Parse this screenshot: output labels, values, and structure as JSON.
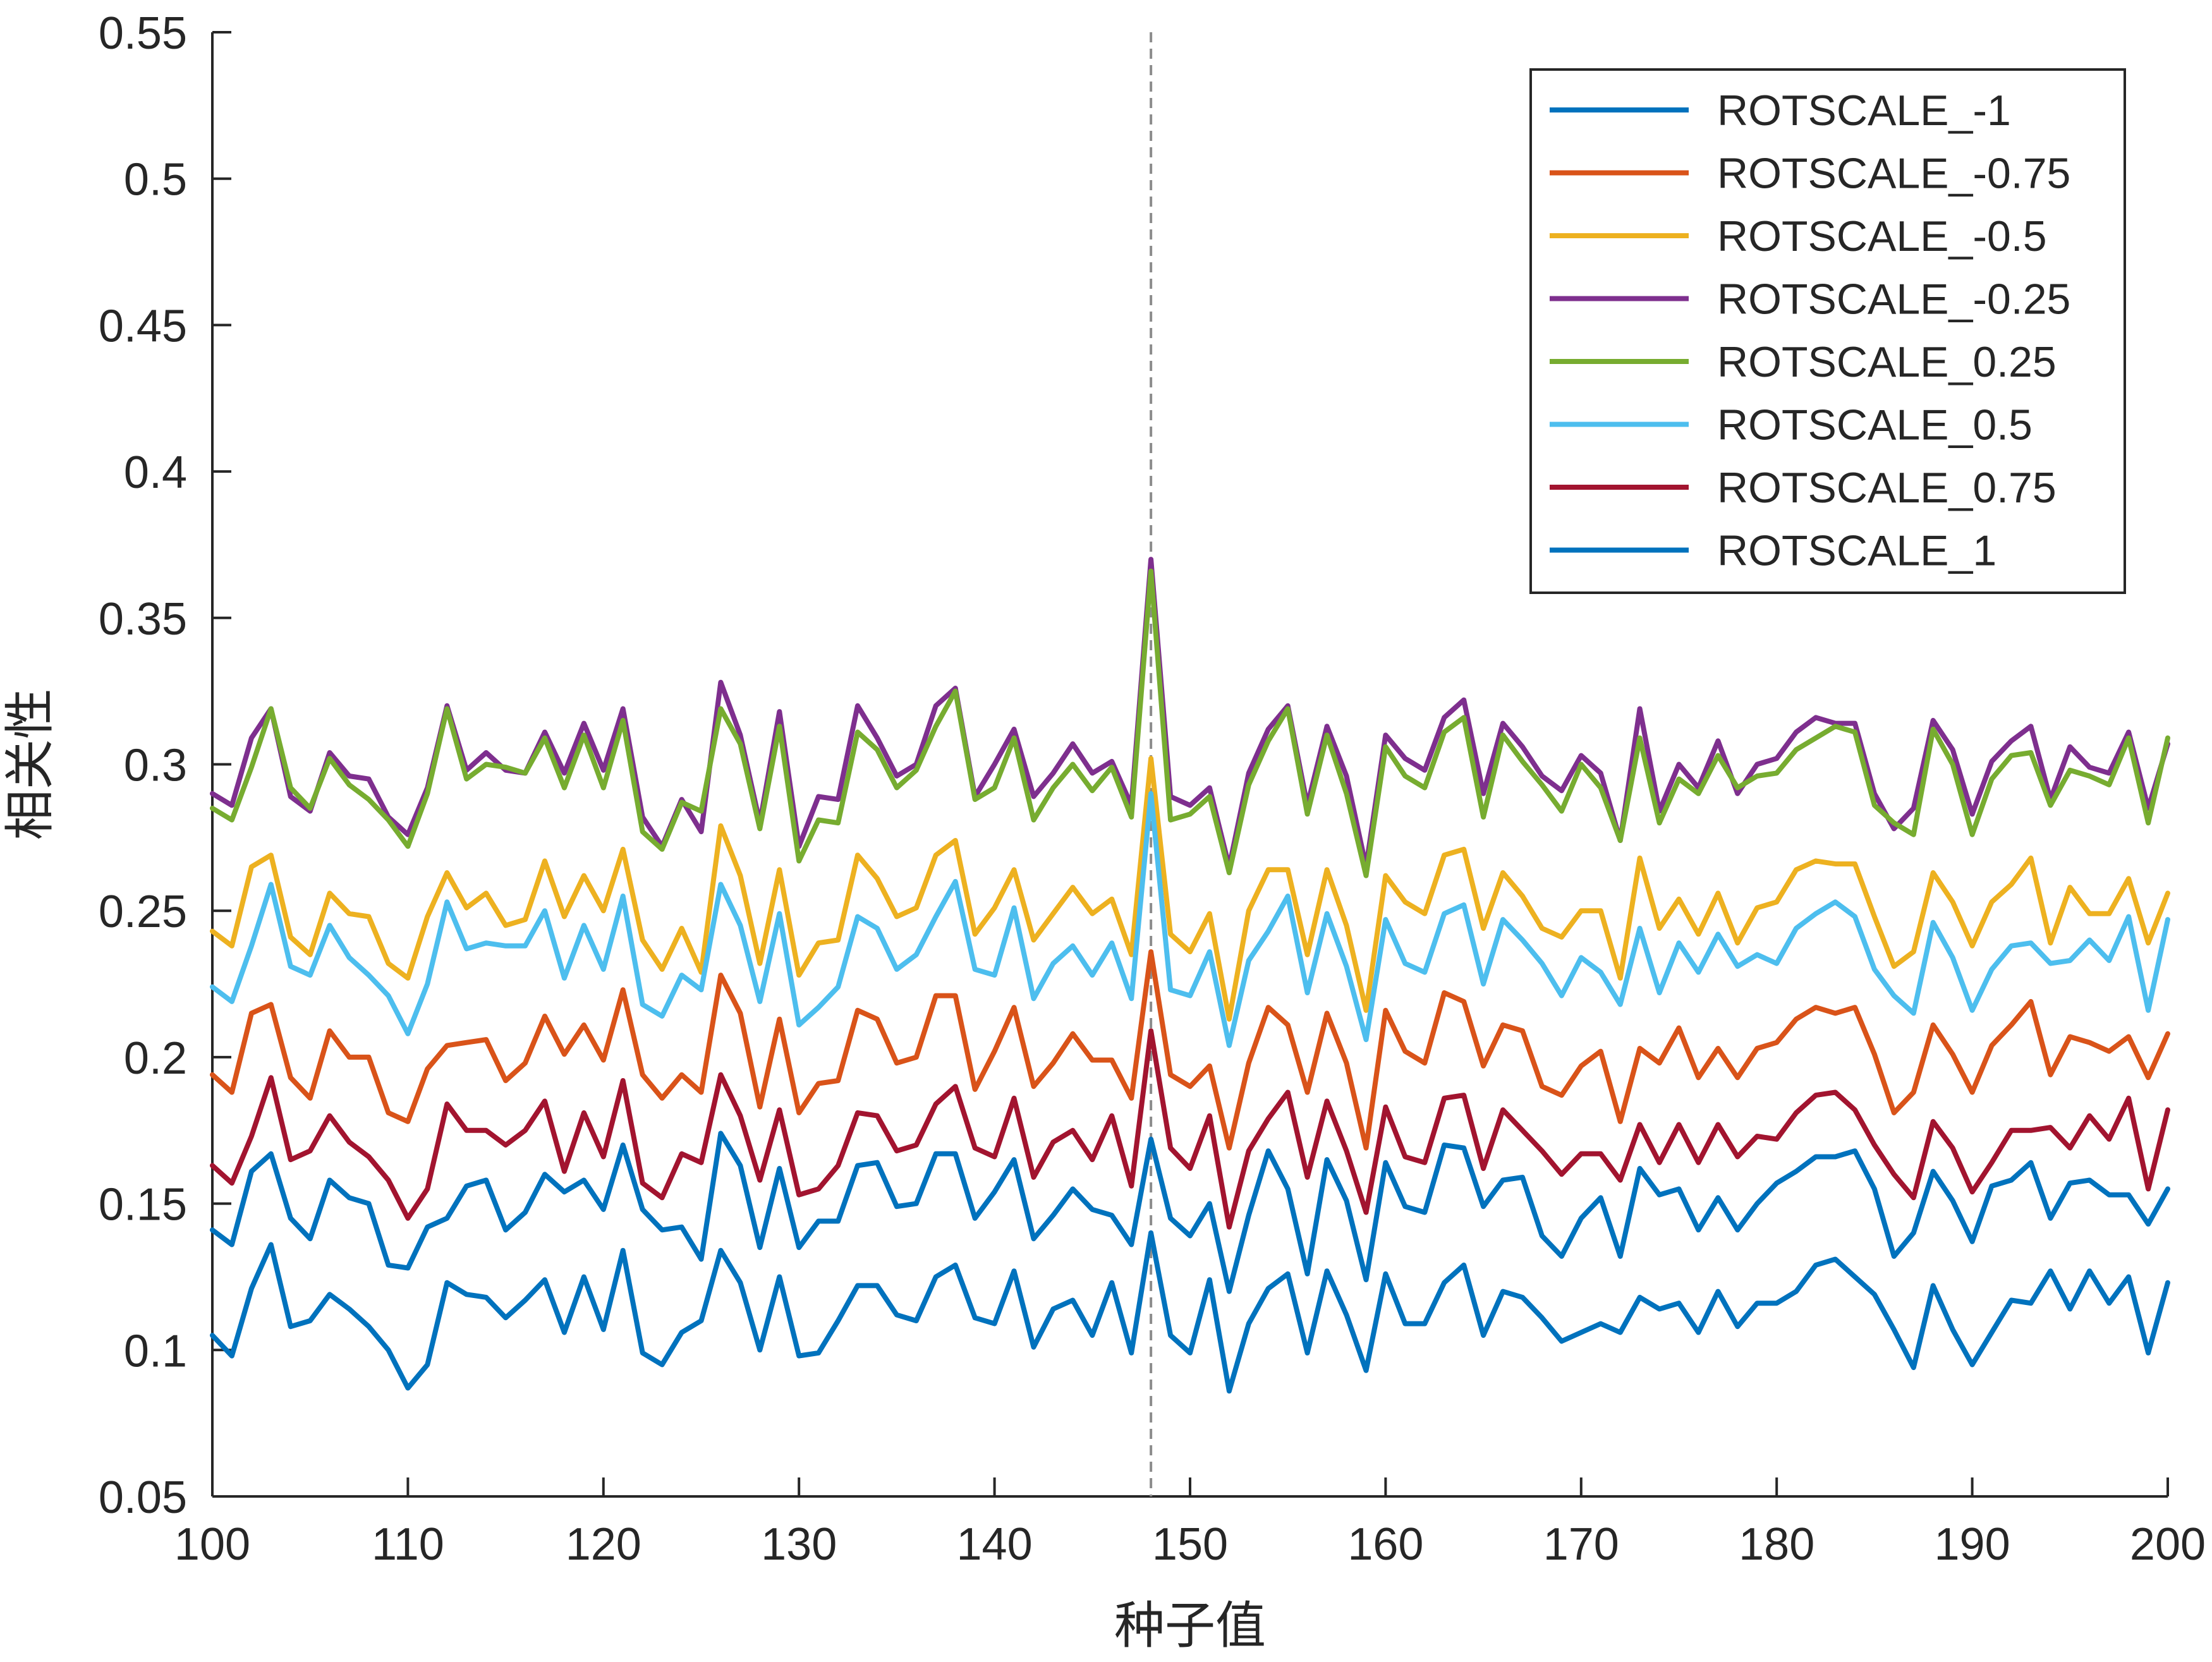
{
  "chart_data": {
    "type": "line",
    "title": "",
    "xlabel": "种子值",
    "ylabel": "相关性",
    "xlim": [
      100,
      200
    ],
    "ylim": [
      0.05,
      0.55
    ],
    "x_ticks": [
      100,
      110,
      120,
      130,
      140,
      150,
      160,
      170,
      180,
      190,
      200
    ],
    "y_ticks": [
      0.05,
      0.1,
      0.15,
      0.2,
      0.25,
      0.3,
      0.35,
      0.4,
      0.45,
      0.5,
      0.55
    ],
    "grid": false,
    "legend_position": "top-right",
    "reference_line": {
      "x": 148,
      "style": "dashed",
      "color": "#8c8c8c"
    },
    "x_start": 100,
    "x_step": 1,
    "series": [
      {
        "name": "ROTSCALE_-1",
        "color": "#0072BD",
        "values": [
          0.105,
          0.098,
          0.121,
          0.136,
          0.108,
          0.11,
          0.119,
          0.114,
          0.108,
          0.1,
          0.087,
          0.095,
          0.123,
          0.119,
          0.118,
          0.111,
          0.117,
          0.124,
          0.106,
          0.125,
          0.107,
          0.134,
          0.099,
          0.095,
          0.106,
          0.11,
          0.134,
          0.123,
          0.1,
          0.125,
          0.098,
          0.099,
          0.11,
          0.122,
          0.122,
          0.112,
          0.11,
          0.125,
          0.129,
          0.111,
          0.109,
          0.127,
          0.101,
          0.114,
          0.117,
          0.105,
          0.123,
          0.099,
          0.14,
          0.105,
          0.099,
          0.124,
          0.086,
          0.109,
          0.121,
          0.126,
          0.099,
          0.127,
          0.112,
          0.093,
          0.126,
          0.109,
          0.109,
          0.123,
          0.129,
          0.105,
          0.12,
          0.118,
          0.111,
          0.103,
          0.106,
          0.109,
          0.106,
          0.118,
          0.114,
          0.116,
          0.106,
          0.12,
          0.108,
          0.116,
          0.116,
          0.12,
          0.129,
          0.131,
          0.125,
          0.119,
          0.107,
          0.094,
          0.122,
          0.107,
          0.095,
          0.106,
          0.117,
          0.116,
          0.127,
          0.114,
          0.127,
          0.116,
          0.125,
          0.099,
          0.123
        ]
      },
      {
        "name": "ROTSCALE_-0.75",
        "color": "#D95319",
        "values": [
          0.194,
          0.188,
          0.215,
          0.218,
          0.193,
          0.186,
          0.209,
          0.2,
          0.2,
          0.181,
          0.178,
          0.196,
          0.204,
          0.205,
          0.206,
          0.192,
          0.198,
          0.214,
          0.201,
          0.211,
          0.199,
          0.223,
          0.194,
          0.186,
          0.194,
          0.188,
          0.228,
          0.215,
          0.183,
          0.213,
          0.181,
          0.191,
          0.192,
          0.216,
          0.213,
          0.198,
          0.2,
          0.221,
          0.221,
          0.189,
          0.202,
          0.217,
          0.19,
          0.198,
          0.208,
          0.199,
          0.199,
          0.186,
          0.236,
          0.194,
          0.19,
          0.197,
          0.169,
          0.198,
          0.217,
          0.211,
          0.188,
          0.215,
          0.198,
          0.169,
          0.216,
          0.202,
          0.198,
          0.222,
          0.219,
          0.197,
          0.211,
          0.209,
          0.19,
          0.187,
          0.197,
          0.202,
          0.178,
          0.203,
          0.198,
          0.21,
          0.193,
          0.203,
          0.193,
          0.203,
          0.205,
          0.213,
          0.217,
          0.215,
          0.217,
          0.201,
          0.181,
          0.188,
          0.211,
          0.201,
          0.188,
          0.204,
          0.211,
          0.219,
          0.194,
          0.207,
          0.205,
          0.202,
          0.207,
          0.193,
          0.208
        ]
      },
      {
        "name": "ROTSCALE_-0.5",
        "color": "#EDB120",
        "values": [
          0.243,
          0.238,
          0.265,
          0.269,
          0.241,
          0.235,
          0.256,
          0.249,
          0.248,
          0.232,
          0.227,
          0.248,
          0.263,
          0.251,
          0.256,
          0.245,
          0.247,
          0.267,
          0.248,
          0.262,
          0.25,
          0.271,
          0.24,
          0.23,
          0.244,
          0.229,
          0.279,
          0.262,
          0.232,
          0.264,
          0.228,
          0.239,
          0.24,
          0.269,
          0.261,
          0.248,
          0.251,
          0.269,
          0.274,
          0.242,
          0.251,
          0.264,
          0.24,
          0.249,
          0.258,
          0.249,
          0.254,
          0.235,
          0.302,
          0.242,
          0.236,
          0.249,
          0.213,
          0.25,
          0.264,
          0.264,
          0.235,
          0.264,
          0.245,
          0.216,
          0.262,
          0.253,
          0.249,
          0.269,
          0.271,
          0.244,
          0.263,
          0.255,
          0.244,
          0.241,
          0.25,
          0.25,
          0.227,
          0.268,
          0.244,
          0.254,
          0.242,
          0.256,
          0.239,
          0.251,
          0.253,
          0.264,
          0.267,
          0.266,
          0.266,
          0.248,
          0.231,
          0.236,
          0.263,
          0.253,
          0.238,
          0.253,
          0.259,
          0.268,
          0.239,
          0.258,
          0.249,
          0.249,
          0.261,
          0.239,
          0.256
        ]
      },
      {
        "name": "ROTSCALE_-0.25",
        "color": "#7E2F8E",
        "values": [
          0.29,
          0.286,
          0.309,
          0.319,
          0.289,
          0.284,
          0.304,
          0.296,
          0.295,
          0.282,
          0.276,
          0.292,
          0.32,
          0.298,
          0.304,
          0.298,
          0.297,
          0.311,
          0.297,
          0.314,
          0.298,
          0.319,
          0.282,
          0.272,
          0.288,
          0.277,
          0.328,
          0.31,
          0.28,
          0.318,
          0.272,
          0.289,
          0.288,
          0.32,
          0.309,
          0.296,
          0.3,
          0.32,
          0.326,
          0.289,
          0.3,
          0.312,
          0.289,
          0.297,
          0.307,
          0.297,
          0.301,
          0.286,
          0.37,
          0.289,
          0.286,
          0.292,
          0.265,
          0.297,
          0.312,
          0.32,
          0.286,
          0.313,
          0.296,
          0.265,
          0.31,
          0.302,
          0.298,
          0.316,
          0.322,
          0.29,
          0.314,
          0.306,
          0.296,
          0.291,
          0.303,
          0.297,
          0.274,
          0.319,
          0.284,
          0.3,
          0.292,
          0.308,
          0.29,
          0.3,
          0.302,
          0.311,
          0.316,
          0.314,
          0.314,
          0.29,
          0.278,
          0.285,
          0.315,
          0.305,
          0.283,
          0.301,
          0.308,
          0.313,
          0.288,
          0.306,
          0.299,
          0.297,
          0.311,
          0.285,
          0.307
        ]
      },
      {
        "name": "ROTSCALE_0.25",
        "color": "#77AC30",
        "values": [
          0.285,
          0.281,
          0.299,
          0.319,
          0.292,
          0.285,
          0.302,
          0.293,
          0.288,
          0.281,
          0.272,
          0.29,
          0.319,
          0.295,
          0.3,
          0.299,
          0.297,
          0.309,
          0.292,
          0.31,
          0.292,
          0.315,
          0.277,
          0.271,
          0.287,
          0.284,
          0.319,
          0.307,
          0.278,
          0.313,
          0.267,
          0.281,
          0.28,
          0.311,
          0.305,
          0.292,
          0.298,
          0.313,
          0.325,
          0.288,
          0.292,
          0.309,
          0.281,
          0.292,
          0.3,
          0.291,
          0.299,
          0.282,
          0.366,
          0.281,
          0.283,
          0.289,
          0.263,
          0.293,
          0.308,
          0.319,
          0.283,
          0.31,
          0.29,
          0.262,
          0.306,
          0.296,
          0.292,
          0.311,
          0.316,
          0.282,
          0.31,
          0.301,
          0.293,
          0.284,
          0.3,
          0.292,
          0.274,
          0.309,
          0.28,
          0.295,
          0.29,
          0.303,
          0.292,
          0.296,
          0.297,
          0.305,
          0.309,
          0.313,
          0.311,
          0.286,
          0.28,
          0.276,
          0.312,
          0.3,
          0.276,
          0.295,
          0.303,
          0.304,
          0.286,
          0.298,
          0.296,
          0.293,
          0.309,
          0.28,
          0.309
        ]
      },
      {
        "name": "ROTSCALE_0.5",
        "color": "#4DBEEE",
        "values": [
          0.224,
          0.219,
          0.238,
          0.259,
          0.231,
          0.228,
          0.245,
          0.234,
          0.228,
          0.221,
          0.208,
          0.225,
          0.253,
          0.237,
          0.239,
          0.238,
          0.238,
          0.25,
          0.227,
          0.245,
          0.23,
          0.255,
          0.218,
          0.214,
          0.228,
          0.223,
          0.259,
          0.245,
          0.219,
          0.249,
          0.211,
          0.217,
          0.224,
          0.248,
          0.244,
          0.23,
          0.235,
          0.248,
          0.26,
          0.23,
          0.228,
          0.251,
          0.22,
          0.232,
          0.238,
          0.228,
          0.239,
          0.22,
          0.29,
          0.223,
          0.221,
          0.236,
          0.204,
          0.233,
          0.243,
          0.255,
          0.222,
          0.249,
          0.231,
          0.206,
          0.247,
          0.232,
          0.229,
          0.249,
          0.252,
          0.225,
          0.247,
          0.24,
          0.232,
          0.221,
          0.234,
          0.229,
          0.218,
          0.244,
          0.222,
          0.239,
          0.229,
          0.242,
          0.231,
          0.235,
          0.232,
          0.244,
          0.249,
          0.253,
          0.248,
          0.23,
          0.221,
          0.215,
          0.246,
          0.234,
          0.216,
          0.23,
          0.238,
          0.239,
          0.232,
          0.233,
          0.24,
          0.233,
          0.248,
          0.216,
          0.247
        ]
      },
      {
        "name": "ROTSCALE_0.75",
        "color": "#A2142F",
        "values": [
          0.163,
          0.157,
          0.173,
          0.193,
          0.165,
          0.168,
          0.18,
          0.171,
          0.166,
          0.158,
          0.145,
          0.155,
          0.184,
          0.175,
          0.175,
          0.17,
          0.175,
          0.185,
          0.161,
          0.181,
          0.166,
          0.192,
          0.157,
          0.152,
          0.167,
          0.164,
          0.194,
          0.18,
          0.158,
          0.182,
          0.153,
          0.155,
          0.163,
          0.181,
          0.18,
          0.168,
          0.17,
          0.184,
          0.19,
          0.169,
          0.166,
          0.186,
          0.159,
          0.171,
          0.175,
          0.165,
          0.18,
          0.156,
          0.209,
          0.169,
          0.162,
          0.18,
          0.142,
          0.168,
          0.179,
          0.188,
          0.159,
          0.185,
          0.168,
          0.147,
          0.183,
          0.166,
          0.164,
          0.186,
          0.187,
          0.162,
          0.182,
          0.175,
          0.168,
          0.16,
          0.167,
          0.167,
          0.158,
          0.177,
          0.164,
          0.177,
          0.164,
          0.177,
          0.166,
          0.173,
          0.172,
          0.181,
          0.187,
          0.188,
          0.182,
          0.17,
          0.16,
          0.152,
          0.178,
          0.169,
          0.154,
          0.164,
          0.175,
          0.175,
          0.176,
          0.169,
          0.18,
          0.172,
          0.186,
          0.155,
          0.182
        ]
      },
      {
        "name": "ROTSCALE_1",
        "color": "#0072BD",
        "values": [
          0.141,
          0.136,
          0.161,
          0.167,
          0.145,
          0.138,
          0.158,
          0.152,
          0.15,
          0.129,
          0.128,
          0.142,
          0.145,
          0.156,
          0.158,
          0.141,
          0.147,
          0.16,
          0.154,
          0.158,
          0.148,
          0.17,
          0.148,
          0.141,
          0.142,
          0.131,
          0.174,
          0.163,
          0.135,
          0.162,
          0.135,
          0.144,
          0.144,
          0.163,
          0.164,
          0.149,
          0.15,
          0.167,
          0.167,
          0.145,
          0.154,
          0.165,
          0.138,
          0.146,
          0.155,
          0.148,
          0.146,
          0.136,
          0.172,
          0.145,
          0.139,
          0.15,
          0.12,
          0.146,
          0.168,
          0.155,
          0.126,
          0.165,
          0.151,
          0.124,
          0.164,
          0.149,
          0.147,
          0.17,
          0.169,
          0.149,
          0.158,
          0.159,
          0.139,
          0.132,
          0.145,
          0.152,
          0.132,
          0.162,
          0.153,
          0.155,
          0.141,
          0.152,
          0.141,
          0.15,
          0.157,
          0.161,
          0.166,
          0.166,
          0.168,
          0.155,
          0.132,
          0.14,
          0.161,
          0.151,
          0.137,
          0.156,
          0.158,
          0.164,
          0.145,
          0.157,
          0.158,
          0.153,
          0.153,
          0.143,
          0.155
        ]
      }
    ]
  }
}
